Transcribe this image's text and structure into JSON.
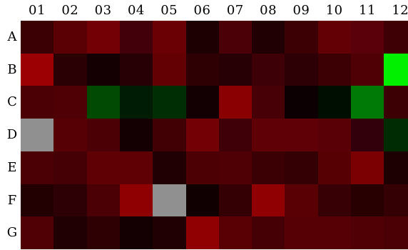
{
  "columns": [
    "01",
    "02",
    "03",
    "04",
    "05",
    "06",
    "07",
    "08",
    "09",
    "10",
    "11",
    "12"
  ],
  "rows": [
    "A",
    "B",
    "C",
    "D",
    "E",
    "F",
    "G"
  ],
  "wells": [
    [
      "#3a0004",
      "#5a0004",
      "#720004",
      "#42000a",
      "#6a0004",
      "#1c0002",
      "#4a0006",
      "#200002",
      "#3c0004",
      "#620006",
      "#5a000a",
      "#3e0004"
    ],
    [
      "#9c0002",
      "#2a0004",
      "#140002",
      "#260004",
      "#620004",
      "#2e0004",
      "#260004",
      "#3e0006",
      "#2c0004",
      "#3c0004",
      "#4e0004",
      "#00f000"
    ],
    [
      "#4a0004",
      "#4e0004",
      "#004a04",
      "#001c04",
      "#002e04",
      "#120002",
      "#8a0002",
      "#460006",
      "#0c0002",
      "#000e02",
      "#007a06",
      "#3c0004"
    ],
    [
      "#909090",
      "#560006",
      "#4a0004",
      "#140002",
      "#400004",
      "#720004",
      "#400008",
      "#5e0006",
      "#5e0006",
      "#580006",
      "#32000a",
      "#002c04"
    ],
    [
      "#4a0004",
      "#440004",
      "#5e0004",
      "#5e0004",
      "#200002",
      "#4c0004",
      "#4e0004",
      "#3a0004",
      "#340004",
      "#560004",
      "#7a0002",
      "#1c0002"
    ],
    [
      "#220002",
      "#2c0004",
      "#4a0004",
      "#8e0002",
      "#909090",
      "#100002",
      "#340004",
      "#900002",
      "#580004",
      "#360004",
      "#280002",
      "#340004"
    ],
    [
      "#500004",
      "#200002",
      "#2e0004",
      "#140002",
      "#200002",
      "#900002",
      "#580004",
      "#440004",
      "#560006",
      "#560006",
      "#500004",
      "#4a0004"
    ]
  ]
}
